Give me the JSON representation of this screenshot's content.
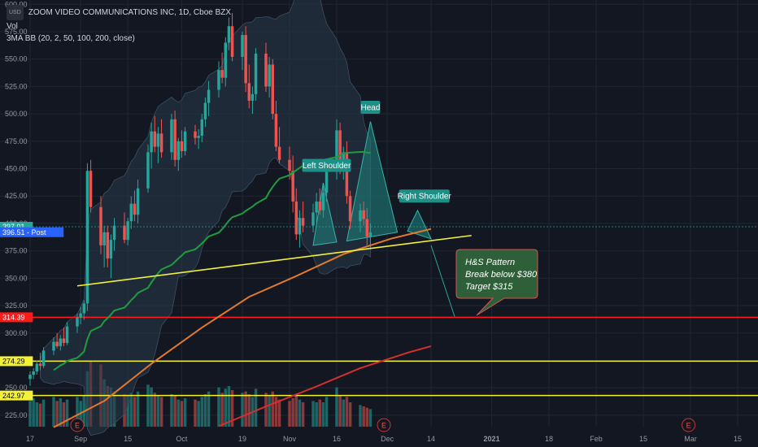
{
  "legend": {
    "currency": "USD",
    "title": "ZOOM VIDEO COMMUNICATIONS INC, 1D, Cboe BZX",
    "vol": "Vol",
    "indicator": "3MA BB (20, 2, 50, 100, 200, close)"
  },
  "colors": {
    "background": "#131722",
    "up": "#26a69a",
    "down": "#ef5350",
    "ma_fast": "#1f9d3e",
    "ma_mid": "#e07a2f",
    "ma_slow": "#d32f2f",
    "band_fill": "#2a3a4a",
    "trendline": "#f3f03a",
    "support_yellow": "#f3f03a",
    "support_red": "#ff1a1a",
    "pattern_fill": "#1e7f7a",
    "note_bg": "#2e5f38"
  },
  "chart_data": {
    "type": "candlestick",
    "ylim": [
      208,
      610
    ],
    "y_ticks": [
      225,
      250,
      275,
      300,
      325,
      350,
      375,
      400,
      425,
      450,
      475,
      500,
      525,
      550,
      575,
      600
    ],
    "y_tick_labels": [
      "225.00",
      "250.00",
      "275.00",
      "300.00",
      "325.00",
      "350.00",
      "375.00",
      "400.00",
      "425.00",
      "450.00",
      "475.00",
      "500.00",
      "525.00",
      "550.00",
      "575.00",
      "600.00"
    ],
    "x_ticks": [
      {
        "date": "2020-08-17",
        "label": "17"
      },
      {
        "date": "2020-09-01",
        "label": "Sep"
      },
      {
        "date": "2020-09-15",
        "label": "15"
      },
      {
        "date": "2020-10-01",
        "label": "Oct"
      },
      {
        "date": "2020-10-19",
        "label": "19"
      },
      {
        "date": "2020-11-02",
        "label": "Nov"
      },
      {
        "date": "2020-11-16",
        "label": "16"
      },
      {
        "date": "2020-12-01",
        "label": "Dec"
      },
      {
        "date": "2020-12-14",
        "label": "14"
      },
      {
        "date": "2021-01-01",
        "label": "2021"
      },
      {
        "date": "2021-01-18",
        "label": "18"
      },
      {
        "date": "2021-02-01",
        "label": "Feb"
      },
      {
        "date": "2021-02-15",
        "label": "15"
      },
      {
        "date": "2021-03-01",
        "label": "Mar"
      },
      {
        "date": "2021-03-15",
        "label": "15"
      }
    ],
    "ohlc": [
      [
        258,
        265,
        252,
        262
      ],
      [
        262,
        268,
        258,
        265
      ],
      [
        265,
        275,
        262,
        272
      ],
      [
        272,
        282,
        266,
        270
      ],
      [
        270,
        287,
        268,
        284
      ],
      [
        284,
        296,
        280,
        292
      ],
      [
        292,
        300,
        286,
        288
      ],
      [
        288,
        298,
        284,
        295
      ],
      [
        295,
        305,
        288,
        291
      ],
      [
        291,
        310,
        289,
        306
      ],
      [
        306,
        318,
        300,
        314
      ],
      [
        314,
        324,
        308,
        318
      ],
      [
        318,
        330,
        312,
        327
      ],
      [
        327,
        455,
        320,
        448
      ],
      [
        448,
        458,
        410,
        415
      ],
      [
        415,
        425,
        372,
        380
      ],
      [
        380,
        398,
        360,
        392
      ],
      [
        392,
        398,
        360,
        368
      ],
      [
        368,
        390,
        350,
        385
      ],
      [
        385,
        405,
        375,
        398
      ],
      [
        398,
        410,
        382,
        385
      ],
      [
        385,
        405,
        380,
        402
      ],
      [
        402,
        425,
        395,
        418
      ],
      [
        418,
        430,
        402,
        408
      ],
      [
        408,
        440,
        400,
        432
      ],
      [
        432,
        472,
        428,
        465
      ],
      [
        465,
        492,
        450,
        484
      ],
      [
        484,
        498,
        465,
        470
      ],
      [
        470,
        488,
        455,
        482
      ],
      [
        482,
        495,
        460,
        465
      ],
      [
        465,
        500,
        458,
        495
      ],
      [
        495,
        503,
        452,
        458
      ],
      [
        458,
        478,
        448,
        475
      ],
      [
        475,
        485,
        460,
        466
      ],
      [
        466,
        488,
        462,
        484
      ],
      [
        484,
        490,
        472,
        478
      ],
      [
        478,
        486,
        468,
        480
      ],
      [
        480,
        500,
        474,
        495
      ],
      [
        495,
        515,
        488,
        510
      ],
      [
        510,
        530,
        498,
        522
      ],
      [
        522,
        548,
        515,
        540
      ],
      [
        540,
        556,
        528,
        533
      ],
      [
        533,
        570,
        525,
        565
      ],
      [
        565,
        588,
        558,
        580
      ],
      [
        580,
        592,
        548,
        552
      ],
      [
        552,
        575,
        540,
        572
      ],
      [
        572,
        580,
        520,
        528
      ],
      [
        528,
        545,
        505,
        512
      ],
      [
        512,
        525,
        500,
        518
      ],
      [
        518,
        560,
        512,
        555
      ],
      [
        555,
        565,
        520,
        525
      ],
      [
        525,
        552,
        515,
        545
      ],
      [
        545,
        550,
        495,
        500
      ],
      [
        500,
        512,
        466,
        470
      ],
      [
        470,
        488,
        455,
        458
      ],
      [
        458,
        470,
        440,
        448
      ],
      [
        448,
        462,
        410,
        420
      ],
      [
        420,
        432,
        385,
        390
      ],
      [
        390,
        412,
        378,
        405
      ],
      [
        405,
        420,
        392,
        398
      ],
      [
        398,
        418,
        392,
        410
      ],
      [
        410,
        428,
        400,
        420
      ],
      [
        420,
        432,
        408,
        412
      ],
      [
        412,
        435,
        405,
        428
      ],
      [
        428,
        455,
        420,
        448
      ],
      [
        448,
        495,
        440,
        485
      ],
      [
        485,
        492,
        445,
        452
      ],
      [
        452,
        470,
        440,
        465
      ],
      [
        465,
        475,
        418,
        425
      ],
      [
        425,
        430,
        395,
        402
      ],
      [
        402,
        418,
        392,
        412
      ],
      [
        412,
        420,
        398,
        404
      ],
      [
        404,
        414,
        380,
        388
      ],
      [
        388,
        400,
        378,
        392
      ]
    ],
    "volume": [
      38,
      42,
      36,
      34,
      40,
      44,
      38,
      42,
      36,
      40,
      44,
      38,
      46,
      82,
      96,
      92,
      70,
      60,
      58,
      52,
      48,
      46,
      50,
      44,
      52,
      62,
      58,
      50,
      46,
      44,
      48,
      46,
      40,
      38,
      42,
      40,
      38,
      44,
      48,
      52,
      58,
      50,
      56,
      60,
      54,
      50,
      52,
      48,
      44,
      56,
      50,
      46,
      52,
      44,
      40,
      38,
      42,
      46,
      40,
      36,
      38,
      36,
      40,
      36,
      44,
      58,
      46,
      40,
      44,
      36,
      32,
      30,
      28,
      26
    ],
    "trendline": {
      "from": [
        "2020-08-31",
        343
      ],
      "to": [
        "2020-12-26",
        389
      ]
    },
    "target_line": {
      "from": [
        "2020-12-14",
        380
      ],
      "to": [
        "2020-12-21",
        315
      ]
    },
    "horizontal_levels": [
      {
        "value": 314.39,
        "label": "314.39",
        "color": "#ff1a1a"
      },
      {
        "value": 274.29,
        "label": "274.29",
        "color": "#f3f03a"
      },
      {
        "value": 242.97,
        "label": "242.97",
        "color": "#f3f03a"
      }
    ],
    "price_labels": [
      {
        "value": 397.01,
        "label": "397.01",
        "bg": "#26a69a"
      },
      {
        "value": 392.0,
        "label": "396.51 - Post",
        "bg": "#2962ff"
      }
    ],
    "annotations": [
      {
        "label": "Head",
        "value": 506
      },
      {
        "label": "Left Shoulder",
        "value": 453
      },
      {
        "label": "Right Shoulder",
        "value": 425
      }
    ],
    "note_lines": [
      "H&S Pattern",
      "Break below $380",
      "Target $315"
    ],
    "earnings_marker": "E"
  }
}
